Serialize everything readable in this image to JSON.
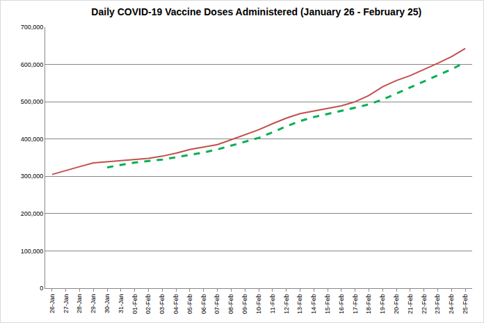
{
  "chart_data": {
    "type": "line",
    "title": "Daily COVID-19 Vaccine Doses Administered (January 26 - February 25)",
    "categories": [
      "26-Jan",
      "27-Jan",
      "28-Jan",
      "29-Jan",
      "30-Jan",
      "31-Jan",
      "01-Feb",
      "02-Feb",
      "03-Feb",
      "04-Feb",
      "05-Feb",
      "06-Feb",
      "07-Feb",
      "08-Feb",
      "09-Feb",
      "10-Feb",
      "11-Feb",
      "12-Feb",
      "13-Feb",
      "14-Feb",
      "15-Feb",
      "16-Feb",
      "17-Feb",
      "18-Feb",
      "19-Feb",
      "20-Feb",
      "21-Feb",
      "22-Feb",
      "23-Feb",
      "24-Feb",
      "25-Feb"
    ],
    "series": [
      {
        "color": "#c0504d",
        "line_style": "solid",
        "values": [
          305000,
          316000,
          326000,
          336000,
          339000,
          341000,
          344000,
          348000,
          354000,
          362000,
          372000,
          378000,
          385000,
          398000,
          411000,
          425000,
          441000,
          456000,
          468000,
          475000,
          481000,
          489000,
          500000,
          517000,
          540000,
          557000,
          570000,
          586000,
          603000,
          621000,
          643000
        ]
      },
      {
        "color": "#00b050",
        "line_style": "dashed",
        "values": [
          null,
          null,
          null,
          null,
          324000,
          331000,
          337000,
          341000,
          345000,
          351000,
          357000,
          364000,
          372000,
          382000,
          392000,
          403000,
          418000,
          434000,
          448000,
          459000,
          467000,
          475000,
          484000,
          493000,
          506000,
          522000,
          538000,
          554000,
          571000,
          587000,
          606000
        ]
      }
    ],
    "ylim": [
      0,
      700000
    ],
    "yticks": [
      0,
      {
        "value": 100000,
        "label": "100,000"
      },
      {
        "value": 200000,
        "label": "200,000"
      },
      {
        "value": 300000,
        "label": "300,000"
      },
      {
        "value": 400000,
        "label": "400,000"
      },
      {
        "value": 500000,
        "label": "500,000"
      },
      {
        "value": 600000,
        "label": "600,000"
      },
      {
        "value": 700000,
        "label": "700,000"
      }
    ],
    "grid": true
  }
}
